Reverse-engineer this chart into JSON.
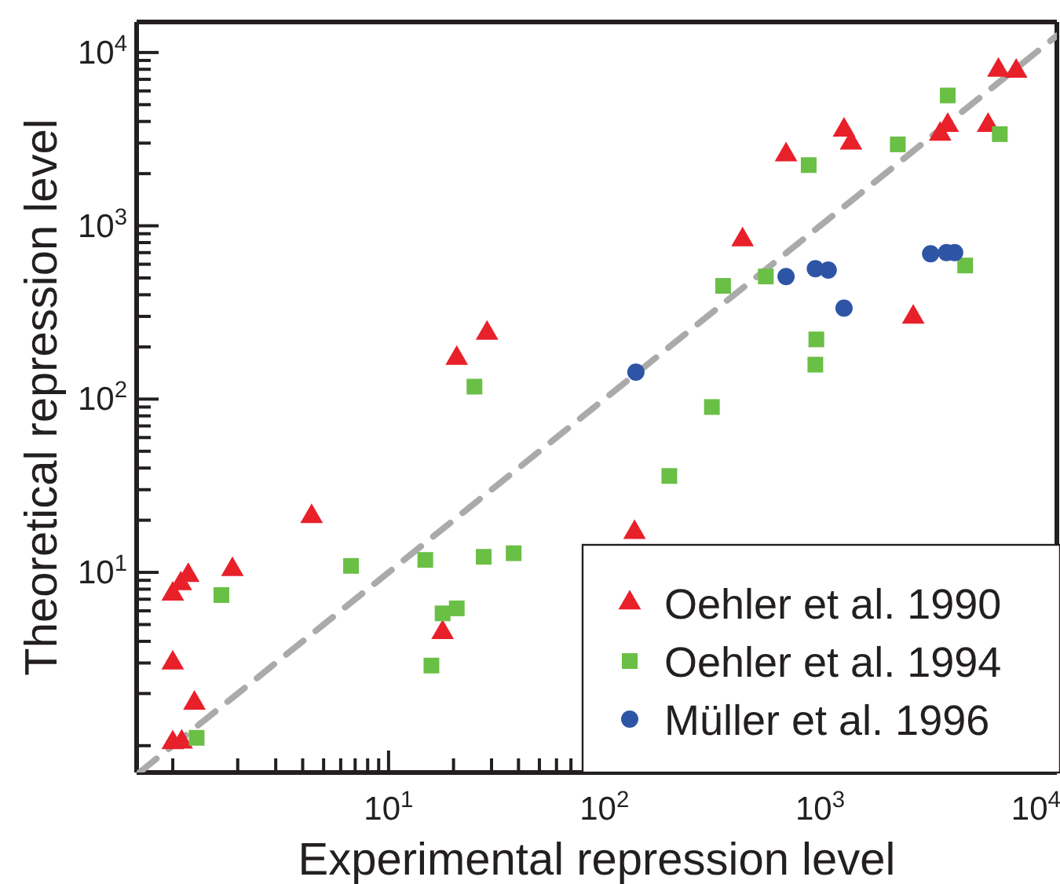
{
  "chart_data": {
    "type": "scatter",
    "xlabel": "Experimental repression level",
    "ylabel": "Theoretical repression level",
    "log": "xy",
    "xlim": [
      0.68,
      12500
    ],
    "ylim": [
      0.7,
      15000
    ],
    "xticks": [
      {
        "value": 1,
        "label": null
      },
      {
        "value": 2,
        "label": null
      },
      {
        "value": 3,
        "label": null
      },
      {
        "value": 4,
        "label": null
      },
      {
        "value": 5,
        "label": null
      },
      {
        "value": 6,
        "label": null
      },
      {
        "value": 7,
        "label": null
      },
      {
        "value": 8,
        "label": null
      },
      {
        "value": 9,
        "label": null
      },
      {
        "value": 10,
        "label": "10$^{1}$"
      },
      {
        "value": 20,
        "label": null
      },
      {
        "value": 30,
        "label": null
      },
      {
        "value": 40,
        "label": null
      },
      {
        "value": 50,
        "label": null
      },
      {
        "value": 60,
        "label": null
      },
      {
        "value": 70,
        "label": null
      },
      {
        "value": 80,
        "label": null
      },
      {
        "value": 90,
        "label": null
      },
      {
        "value": 100,
        "label": "10$^{2}$"
      },
      {
        "value": 200,
        "label": null
      },
      {
        "value": 300,
        "label": null
      },
      {
        "value": 400,
        "label": null
      },
      {
        "value": 500,
        "label": null
      },
      {
        "value": 600,
        "label": null
      },
      {
        "value": 700,
        "label": null
      },
      {
        "value": 800,
        "label": null
      },
      {
        "value": 900,
        "label": null
      },
      {
        "value": 1000,
        "label": "10$^{3}$"
      },
      {
        "value": 2000,
        "label": null
      },
      {
        "value": 3000,
        "label": null
      },
      {
        "value": 4000,
        "label": null
      },
      {
        "value": 5000,
        "label": null
      },
      {
        "value": 6000,
        "label": null
      },
      {
        "value": 7000,
        "label": null
      },
      {
        "value": 8000,
        "label": null
      },
      {
        "value": 9000,
        "label": null
      },
      {
        "value": 10000,
        "label": "10$^{4}$"
      }
    ],
    "yticks": [
      {
        "value": 1,
        "label": null
      },
      {
        "value": 2,
        "label": null
      },
      {
        "value": 3,
        "label": null
      },
      {
        "value": 4,
        "label": null
      },
      {
        "value": 5,
        "label": null
      },
      {
        "value": 6,
        "label": null
      },
      {
        "value": 7,
        "label": null
      },
      {
        "value": 8,
        "label": null
      },
      {
        "value": 9,
        "label": null
      },
      {
        "value": 10,
        "label": "10$^{1}$"
      },
      {
        "value": 20,
        "label": null
      },
      {
        "value": 30,
        "label": null
      },
      {
        "value": 40,
        "label": null
      },
      {
        "value": 50,
        "label": null
      },
      {
        "value": 60,
        "label": null
      },
      {
        "value": 70,
        "label": null
      },
      {
        "value": 80,
        "label": null
      },
      {
        "value": 90,
        "label": null
      },
      {
        "value": 100,
        "label": "10$^{2}$"
      },
      {
        "value": 200,
        "label": null
      },
      {
        "value": 300,
        "label": null
      },
      {
        "value": 400,
        "label": null
      },
      {
        "value": 500,
        "label": null
      },
      {
        "value": 600,
        "label": null
      },
      {
        "value": 700,
        "label": null
      },
      {
        "value": 800,
        "label": null
      },
      {
        "value": 900,
        "label": null
      },
      {
        "value": 1000,
        "label": "10$^{3}$"
      },
      {
        "value": 2000,
        "label": null
      },
      {
        "value": 3000,
        "label": null
      },
      {
        "value": 4000,
        "label": null
      },
      {
        "value": 5000,
        "label": null
      },
      {
        "value": 6000,
        "label": null
      },
      {
        "value": 7000,
        "label": null
      },
      {
        "value": 8000,
        "label": null
      },
      {
        "value": 9000,
        "label": null
      },
      {
        "value": 10000,
        "label": "10$^{4}$"
      }
    ],
    "legend": "bottom right",
    "grid": false,
    "series": [
      {
        "type": "line",
        "color": "#aaaaaa",
        "line_style": "dashed",
        "marker": "none",
        "x": [
          0.7,
          12500
        ],
        "values": [
          0.7,
          12500
        ]
      },
      {
        "name": "Oehler et al. 1990",
        "color": "#e8202a",
        "marker": "triangle",
        "x": [
          1.0,
          1.09,
          1.18,
          1.89,
          4.4,
          1.0,
          1.26,
          1.0,
          1.1,
          17.8,
          20.7,
          28.6,
          695,
          1290,
          1390,
          437,
          2700,
          3600,
          3900,
          6000,
          6700,
          8100,
          138
        ],
        "values": [
          7.5,
          8.6,
          9.6,
          10.4,
          21,
          3.0,
          1.76,
          1.04,
          1.05,
          4.5,
          172,
          240,
          2570,
          3570,
          3000,
          830,
          297,
          3380,
          3800,
          3800,
          7900,
          7800,
          17
        ]
      },
      {
        "name": "Oehler et al. 1994",
        "color": "#6abf45",
        "marker": "square",
        "x": [
          1.68,
          1.29,
          6.7,
          14.8,
          15.8,
          17.8,
          20.7,
          27.6,
          38,
          25,
          200,
          355,
          560,
          885,
          960,
          950,
          315,
          2290,
          3900,
          6800,
          4700
        ],
        "values": [
          7.4,
          1.11,
          10.9,
          11.8,
          2.9,
          5.8,
          6.2,
          12.3,
          12.9,
          118,
          36,
          450,
          510,
          2240,
          221,
          158,
          90,
          2950,
          5650,
          3380,
          590
        ]
      },
      {
        "name": "Müller et al. 1996",
        "color": "#2e55a5",
        "marker": "circle",
        "x": [
          140,
          695,
          950,
          1090,
          1290,
          3250,
          3850,
          4200
        ],
        "values": [
          143,
          510,
          565,
          555,
          335,
          690,
          700,
          700
        ]
      }
    ]
  }
}
